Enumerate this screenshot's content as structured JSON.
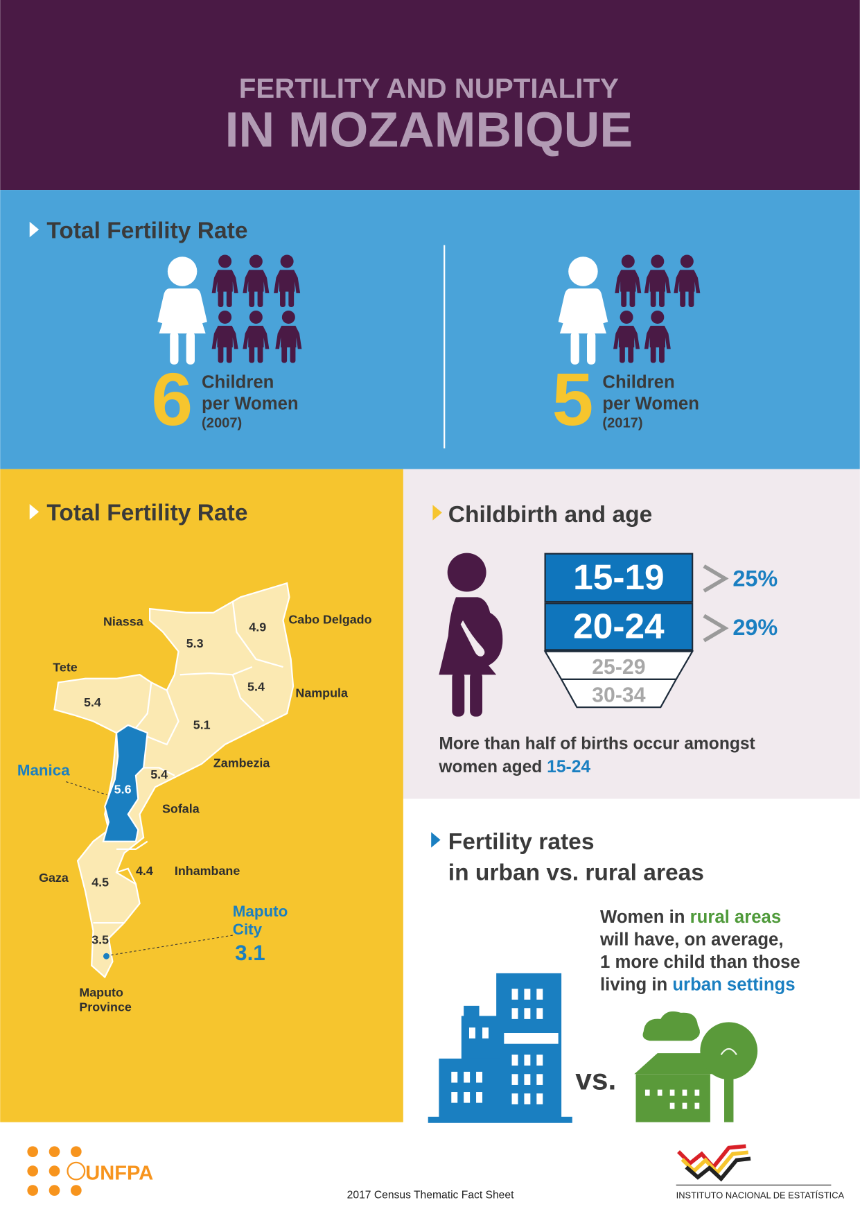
{
  "header": {
    "title_line1": "FERTILITY AND NUPTIALITY",
    "title_line2": "IN MOZAMBIQUE"
  },
  "tfr_section": {
    "heading": "Total Fertility Rate",
    "panels": [
      {
        "number": 6,
        "line1": "Children",
        "line2": "per Women",
        "year": "(2007)"
      },
      {
        "number": 5,
        "line1": "Children",
        "line2": "per Women",
        "year": "(2017)"
      }
    ]
  },
  "map_section": {
    "heading": "Total Fertility Rate",
    "provinces": [
      {
        "name": "Niassa",
        "rate": 5.3
      },
      {
        "name": "Cabo Delgado",
        "rate": 4.9
      },
      {
        "name": "Tete",
        "rate": 5.4
      },
      {
        "name": "Nampula",
        "rate": 5.4
      },
      {
        "name": "Zambezia",
        "rate": 5.1
      },
      {
        "name": "Sofala",
        "rate": 5.4
      },
      {
        "name": "Manica",
        "rate": 5.6,
        "highlight": true
      },
      {
        "name": "Gaza",
        "rate": 4.5
      },
      {
        "name": "Inhambane",
        "rate": 4.4
      },
      {
        "name": [
          "Maputo",
          "Province"
        ],
        "rate": 3.5
      },
      {
        "name": [
          "Maputo",
          "City"
        ],
        "rate": 3.1,
        "highlight": true
      }
    ]
  },
  "childbirth": {
    "heading": "Childbirth and age",
    "age_groups": [
      {
        "label": "15-19",
        "share": "25%"
      },
      {
        "label": "20-24",
        "share": "29%"
      },
      {
        "label": "25-29"
      },
      {
        "label": "30-34"
      }
    ],
    "note_line1": "More than half of births occur amongst",
    "note_line2": [
      {
        "text": "women aged "
      },
      {
        "text": "15-24",
        "color": "#1a7fc1"
      }
    ]
  },
  "urban_rural": {
    "heading_line1": "Fertility rates",
    "heading_line2": "in urban vs. rural areas",
    "text_lines": [
      [
        {
          "text": "Women in "
        },
        {
          "text": "rural areas",
          "color": "#4f9a3a"
        }
      ],
      [
        {
          "text": "will have, on average,"
        }
      ],
      [
        {
          "text": "1 more child than those"
        }
      ],
      [
        {
          "text": "living in "
        },
        {
          "text": "urban settings",
          "color": "#1a7fc1"
        }
      ]
    ],
    "vs": "vs."
  },
  "footer": {
    "unfpa": "UNFPA",
    "caption": "2017 Census Thematic Fact Sheet",
    "ine": "INSTITUTO NACIONAL DE ESTATÍSTICA"
  }
}
